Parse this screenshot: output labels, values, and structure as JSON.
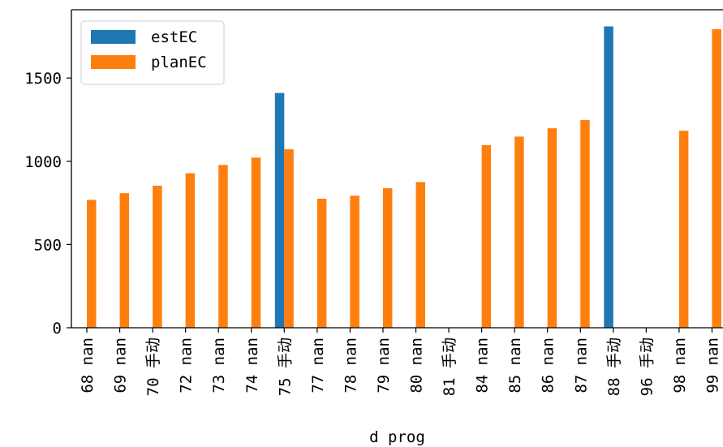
{
  "chart_data": {
    "type": "bar",
    "title": "",
    "xlabel": "d prog",
    "ylabel": "",
    "categories": [
      "68 nan",
      "69 nan",
      "70 手动",
      "72 nan",
      "73 nan",
      "74 nan",
      "75 手动",
      "77 nan",
      "78 nan",
      "79 nan",
      "80 nan",
      "81 手动",
      "84 nan",
      "85 nan",
      "86 nan",
      "87 nan",
      "88 手动",
      "96 手动",
      "98 nan",
      "99 nan"
    ],
    "series": [
      {
        "name": "estEC",
        "color": "#1f77b4",
        "values": [
          null,
          null,
          null,
          null,
          null,
          null,
          1410,
          null,
          null,
          null,
          null,
          null,
          null,
          null,
          null,
          null,
          1810,
          null,
          null,
          null
        ]
      },
      {
        "name": "planEC",
        "color": "#ff7f0e",
        "values": [
          768,
          808,
          853,
          928,
          978,
          1022,
          1072,
          775,
          793,
          838,
          875,
          null,
          1097,
          1148,
          1198,
          1248,
          null,
          null,
          1183,
          1793
        ]
      }
    ],
    "yticks": [
      0,
      500,
      1000,
      1500
    ],
    "ylim": [
      0,
      1910
    ],
    "legend_position": "top-left",
    "grid": false
  }
}
